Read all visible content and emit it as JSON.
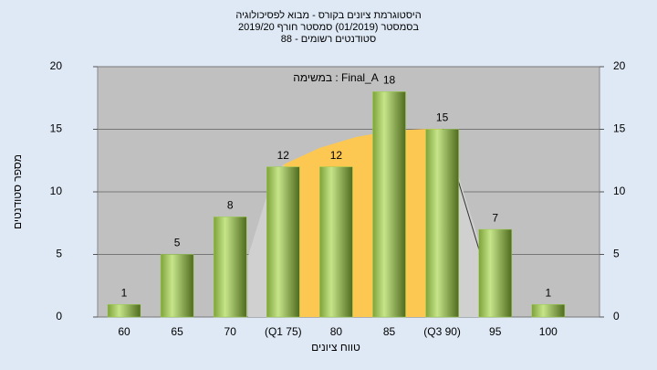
{
  "chart_data": {
    "type": "bar",
    "title": [
      "היסטוגרמת ציונים בקורס - מבוא לפסיכולוגיה",
      "בסמסטר  (01/2019)  סמסטר חורף 2019/20",
      "סטודנטים רשומים - 88"
    ],
    "annotation": "במשימה : Final_A",
    "x_label": "טווח ציונים",
    "y_label": "מספר סטודנטים",
    "categories": [
      "60",
      "65",
      "70",
      "(Q1 75)",
      "80",
      "85",
      "(Q3 90)",
      "95",
      "100"
    ],
    "values": [
      1,
      5,
      8,
      12,
      12,
      18,
      15,
      7,
      1
    ],
    "color": "#9acd4c",
    "ylim": [
      0,
      20
    ],
    "yticks": [
      0,
      5,
      10,
      15,
      20
    ],
    "y2lim": [
      0,
      20
    ],
    "y2ticks": [
      0,
      5,
      10,
      15,
      20
    ],
    "grid": true
  }
}
